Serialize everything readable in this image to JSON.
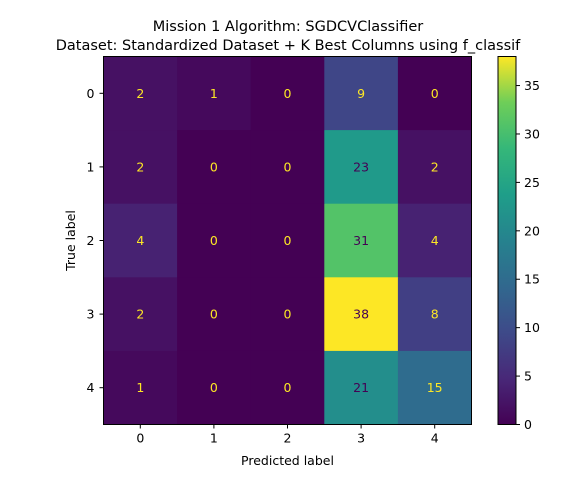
{
  "chart_data": {
    "type": "heatmap",
    "title_line1": "Mission 1 Algorithm: SGDCVClassifier",
    "title_line2": "Dataset: Standardized Dataset + K Best Columns using f_classif",
    "xlabel": "Predicted label",
    "ylabel": "True label",
    "x_categories": [
      "0",
      "1",
      "2",
      "3",
      "4"
    ],
    "y_categories": [
      "0",
      "1",
      "2",
      "3",
      "4"
    ],
    "matrix": [
      [
        2,
        1,
        0,
        9,
        0
      ],
      [
        2,
        0,
        0,
        23,
        2
      ],
      [
        4,
        0,
        0,
        31,
        4
      ],
      [
        2,
        0,
        0,
        38,
        8
      ],
      [
        1,
        0,
        0,
        21,
        15
      ]
    ],
    "colormap": "viridis",
    "vmin": 0,
    "vmax": 38,
    "colorbar_ticks": [
      "0",
      "5",
      "10",
      "15",
      "20",
      "25",
      "30",
      "35"
    ],
    "grid": false,
    "legend": "colorbar-right",
    "text_color_dark_cells": "#fde725",
    "text_color_light_cells": "#440154"
  }
}
